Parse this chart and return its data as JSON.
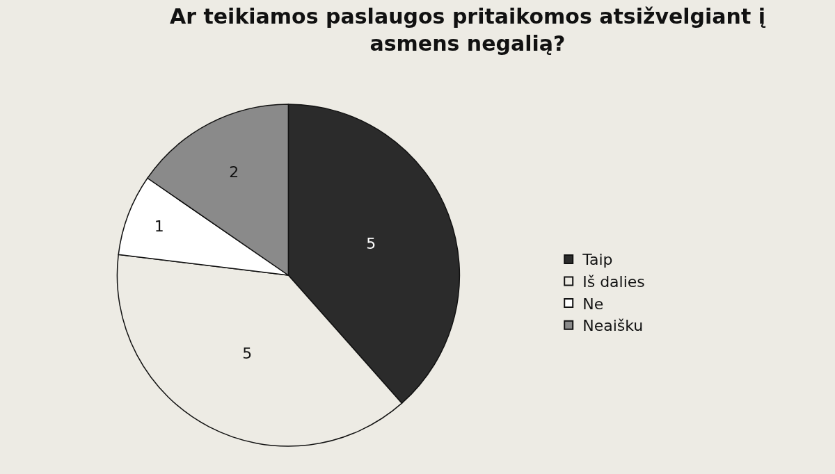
{
  "chart_data": {
    "type": "pie",
    "title": "Ar teikiamos paslaugos pritaikomos atsižvelgiant į asmens negalią?",
    "categories": [
      "Taip",
      "Iš dalies",
      "Ne",
      "Neaišku"
    ],
    "values": [
      5,
      5,
      1,
      2
    ],
    "colors": [
      "#2b2b2b",
      "#edebe4",
      "#ffffff",
      "#8a8a8a"
    ],
    "data_labels": true,
    "legend": "right"
  }
}
